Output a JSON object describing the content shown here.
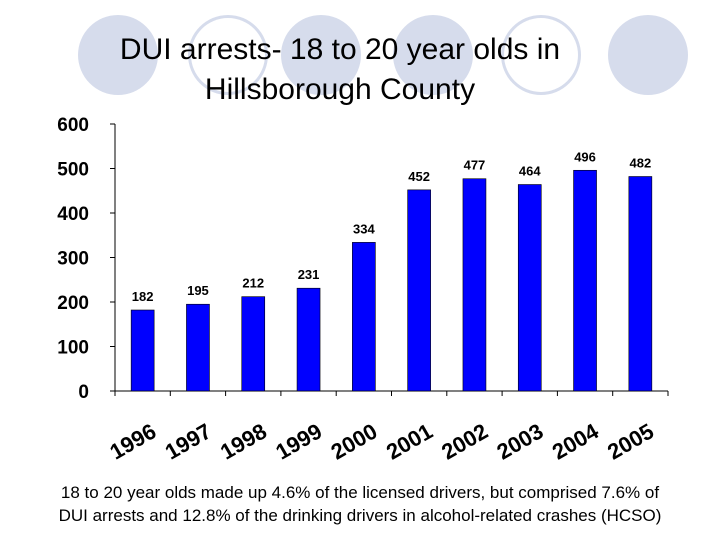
{
  "title": {
    "line1": "DUI arrests- 18 to 20 year olds in",
    "line2": "Hillsborough County"
  },
  "caption": {
    "line1": "18 to 20 year olds made up 4.6% of the licensed drivers, but comprised 7.6% of",
    "line2": "DUI arrests and 12.8% of the drinking drivers in alcohol-related crashes (HCSO)"
  },
  "colors": {
    "bar": "#0000ff",
    "bar_outline": "#000000",
    "decor_circle": "#d6dcec"
  },
  "chart_data": {
    "type": "bar",
    "categories": [
      "1996",
      "1997",
      "1998",
      "1999",
      "2000",
      "2001",
      "2002",
      "2003",
      "2004",
      "2005"
    ],
    "values": [
      182,
      195,
      212,
      231,
      334,
      452,
      477,
      464,
      496,
      482
    ],
    "data_labels": [
      "182",
      "195",
      "212",
      "231",
      "334",
      "452",
      "477",
      "464",
      "496",
      "482"
    ],
    "yticks": [
      0,
      100,
      200,
      300,
      400,
      500,
      600
    ],
    "ytick_labels": [
      "0",
      "100",
      "200",
      "300",
      "400",
      "500",
      "600"
    ],
    "ylim": [
      0,
      600
    ],
    "grid": false,
    "legend": "none"
  }
}
